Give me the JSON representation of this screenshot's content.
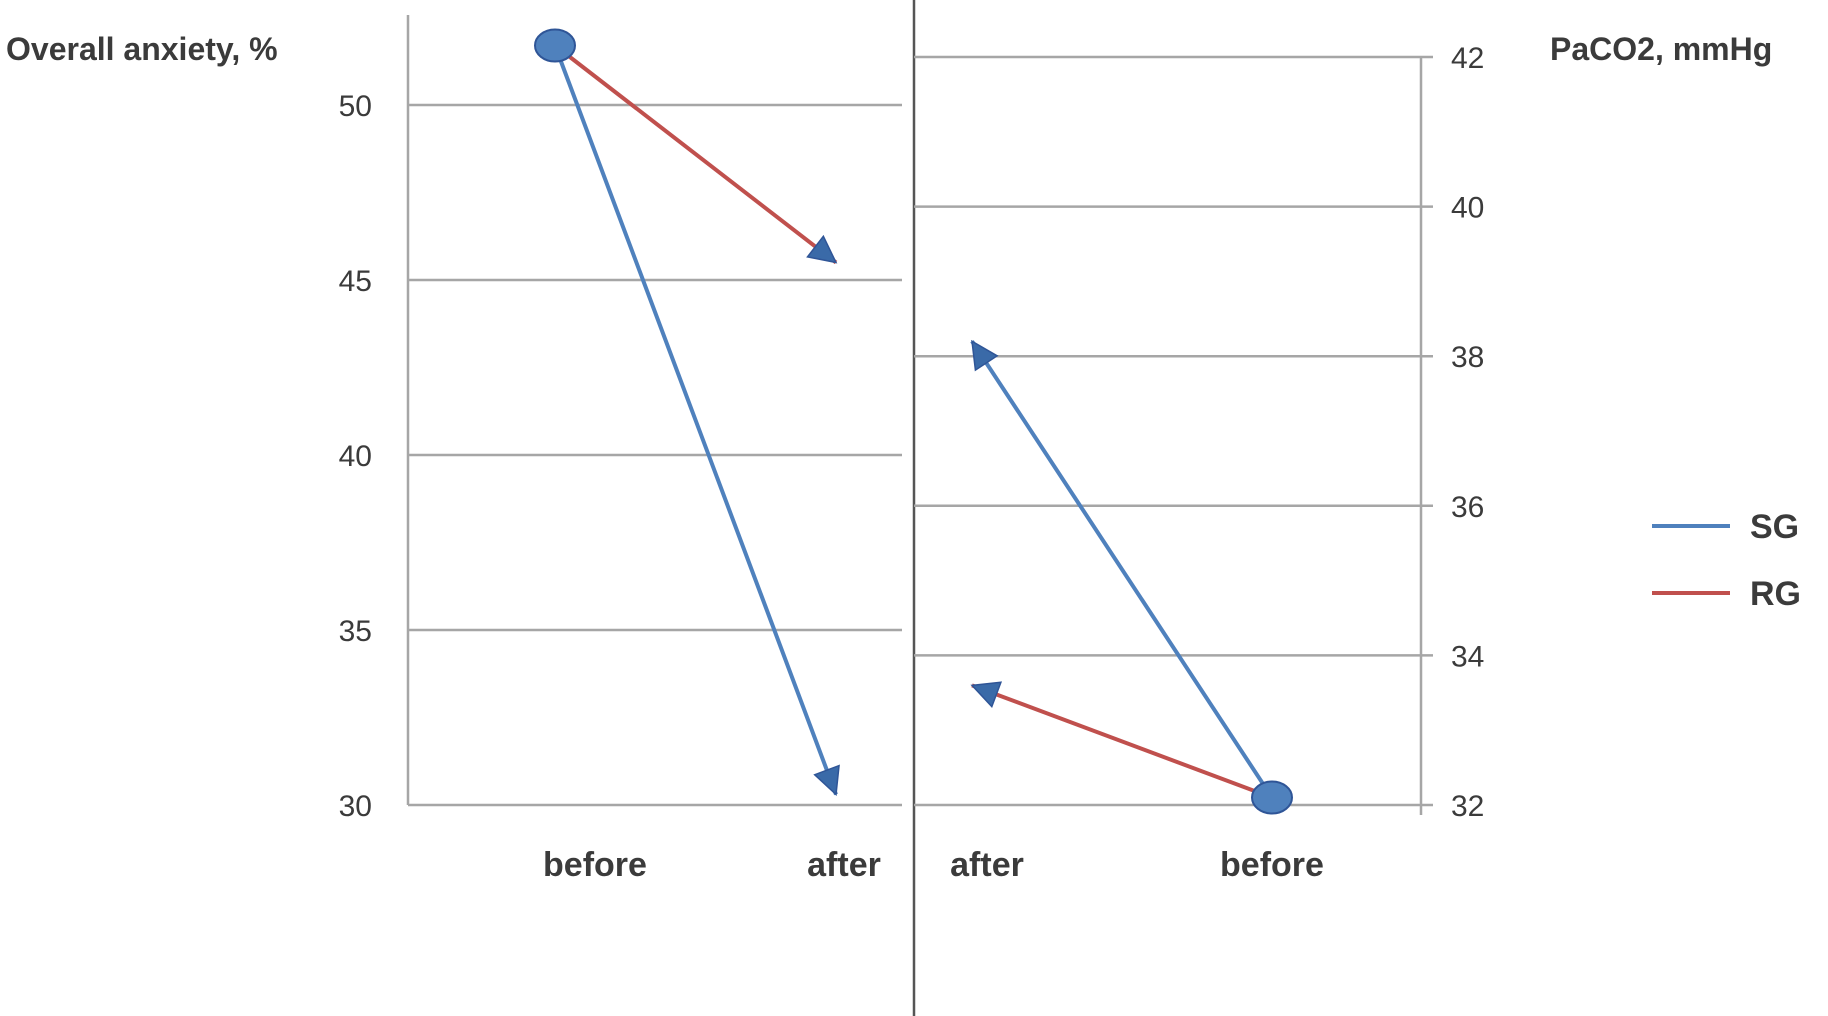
{
  "chart_data": [
    {
      "type": "line",
      "ylabel": "Overall anxiety, %",
      "categories": [
        "before",
        "after"
      ],
      "ylim": [
        30,
        52
      ],
      "yticks": [
        30,
        35,
        40,
        45,
        50
      ],
      "grid": true,
      "series": [
        {
          "name": "SG",
          "values": [
            51.7,
            30.3
          ]
        },
        {
          "name": "RG",
          "values": [
            51.7,
            45.5
          ]
        }
      ]
    },
    {
      "type": "line",
      "ylabel": "PaCO2, mmHg",
      "categories": [
        "after",
        "before"
      ],
      "ylim": [
        32,
        42
      ],
      "yticks": [
        32,
        34,
        36,
        38,
        40,
        42
      ],
      "grid": true,
      "series": [
        {
          "name": "SG",
          "values": [
            38.2,
            32.1
          ]
        },
        {
          "name": "RG",
          "values": [
            33.6,
            32.1
          ]
        }
      ]
    }
  ],
  "legend": {
    "position": "right",
    "items": [
      {
        "label": "SG",
        "color": "#4f81bd"
      },
      {
        "label": "RG",
        "color": "#c0504d"
      }
    ]
  },
  "colors": {
    "SG": "#4f81bd",
    "RG": "#c0504d",
    "marker": "#4f81bd",
    "arrow": "#3a6aa8",
    "grid": "#a6a6a6"
  }
}
